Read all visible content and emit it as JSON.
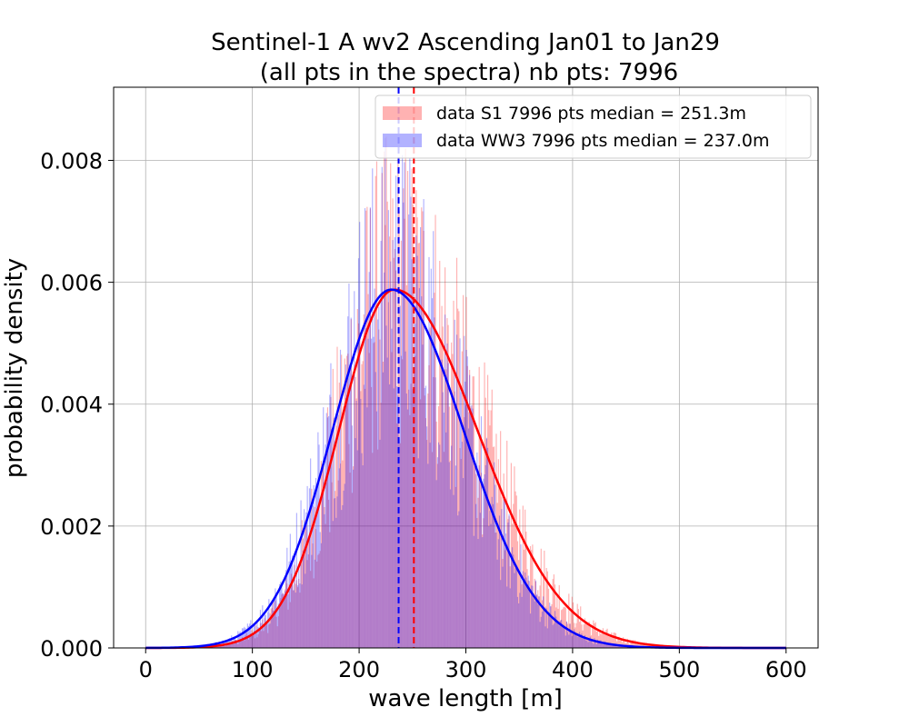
{
  "chart_data": {
    "type": "histogram",
    "title_line1": "Sentinel-1 A wv2 Ascending Jan01 to Jan29",
    "title_line2": "(all pts in the spectra) nb pts: 7996",
    "xlabel": "wave length [m]",
    "ylabel": "probability density",
    "xlim": [
      -30,
      630
    ],
    "ylim": [
      0,
      0.0092
    ],
    "xticks": [
      0,
      100,
      200,
      300,
      400,
      500,
      600
    ],
    "xtick_labels": [
      "0",
      "100",
      "200",
      "300",
      "400",
      "500",
      "600"
    ],
    "yticks": [
      0,
      0.002,
      0.004,
      0.006,
      0.008
    ],
    "ytick_labels": [
      "0.000",
      "0.002",
      "0.004",
      "0.006",
      "0.008"
    ],
    "grid": true,
    "legend_position": "top-right",
    "bin_range": [
      0,
      600
    ],
    "series": [
      {
        "name": "data S1 7996 pts median = 251.3m",
        "color": "#ff0000",
        "alpha": 0.3,
        "median": 251.3,
        "fit_mode": 230,
        "fit_peak": 0.00588,
        "fit_sigma_left": 55,
        "fit_sigma_right": 75,
        "fit_mode_line": 233
      },
      {
        "name": "data WW3 7996 pts median = 237.0m",
        "color": "#0000ff",
        "alpha": 0.3,
        "median": 237.0,
        "fit_peak": 0.00588,
        "fit_mode_line": 230
      }
    ],
    "fit_curves": [
      {
        "color": "#ff0000",
        "mode": 233,
        "peak": 0.00588,
        "sigma_left": 52,
        "sigma_right": 78
      },
      {
        "color": "#0000ff",
        "mode": 230,
        "peak": 0.00588,
        "sigma_left": 55,
        "sigma_right": 68
      }
    ]
  }
}
